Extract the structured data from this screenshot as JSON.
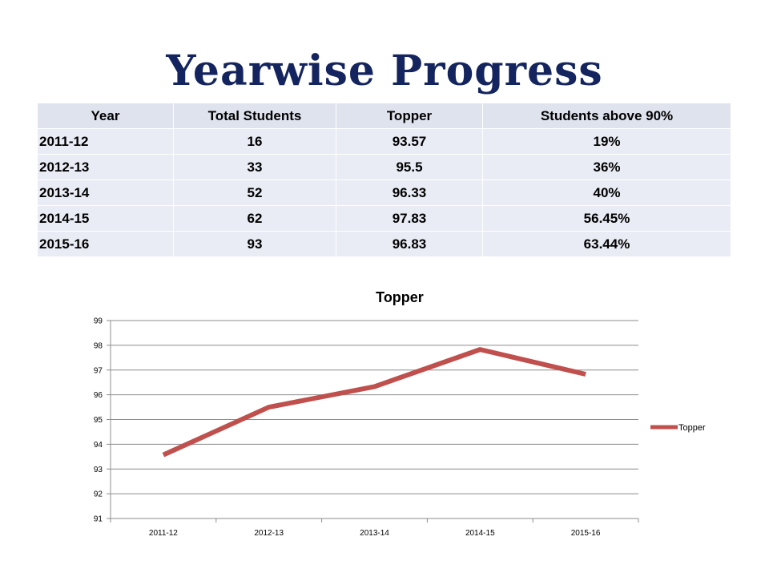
{
  "title": "Yearwise Progress",
  "table": {
    "headers": [
      "Year",
      "Total Students",
      "Topper",
      "Students above 90%"
    ],
    "rows": [
      [
        "2011-12",
        "16",
        "93.57",
        "19%"
      ],
      [
        "2012-13",
        "33",
        "95.5",
        "36%"
      ],
      [
        "2013-14",
        "52",
        "96.33",
        "40%"
      ],
      [
        "2014-15",
        "62",
        "97.83",
        "56.45%"
      ],
      [
        "2015-16",
        "93",
        "96.83",
        "63.44%"
      ]
    ]
  },
  "chart_data": {
    "type": "line",
    "title": "Topper",
    "xlabel": "",
    "ylabel": "",
    "categories": [
      "2011-12",
      "2012-13",
      "2013-14",
      "2014-15",
      "2015-16"
    ],
    "series": [
      {
        "name": "Topper",
        "values": [
          93.57,
          95.5,
          96.33,
          97.83,
          96.83
        ],
        "color": "#c0504d"
      }
    ],
    "ylim": [
      91,
      99
    ],
    "yticks": [
      "91",
      "92",
      "93",
      "94",
      "95",
      "96",
      "97",
      "98",
      "99"
    ],
    "grid": true,
    "legend": "right"
  }
}
